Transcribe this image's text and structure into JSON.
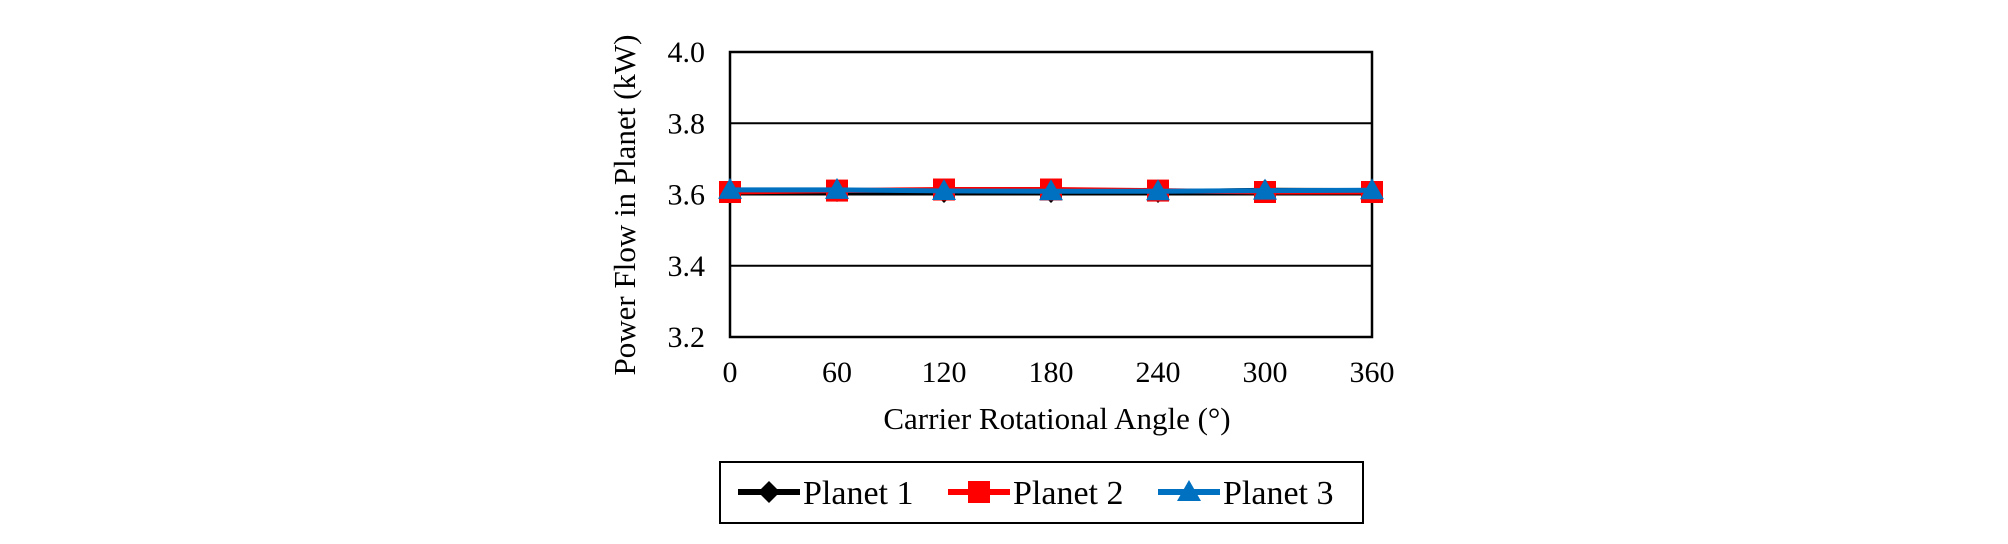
{
  "chart_data": {
    "type": "line",
    "title": "",
    "xlabel": "Carrier Rotational Angle (°)",
    "ylabel": "Power Flow in Planet (kW)",
    "xlim": [
      0,
      360
    ],
    "ylim": [
      3.2,
      4.0
    ],
    "x_ticks": [
      "0",
      "60",
      "120",
      "180",
      "240",
      "300",
      "360"
    ],
    "y_ticks": [
      "3.2",
      "3.4",
      "3.6",
      "3.8",
      "4.0"
    ],
    "grid": "horizontal",
    "legend_position": "bottom",
    "series": [
      {
        "name": "Planet 1",
        "color": "#000000",
        "marker": "diamond",
        "x": [
          0,
          60,
          120,
          180,
          240,
          300,
          360
        ],
        "y": [
          3.61,
          3.61,
          3.607,
          3.607,
          3.607,
          3.612,
          3.611
        ]
      },
      {
        "name": "Planet 2",
        "color": "#ff0000",
        "marker": "square",
        "x": [
          0,
          60,
          120,
          180,
          240,
          300,
          360
        ],
        "y": [
          3.607,
          3.611,
          3.614,
          3.614,
          3.611,
          3.607,
          3.607
        ]
      },
      {
        "name": "Planet 3",
        "color": "#0070c0",
        "marker": "triangle",
        "x": [
          0,
          60,
          120,
          180,
          240,
          300,
          360
        ],
        "y": [
          3.613,
          3.613,
          3.61,
          3.609,
          3.609,
          3.611,
          3.612
        ]
      }
    ]
  }
}
